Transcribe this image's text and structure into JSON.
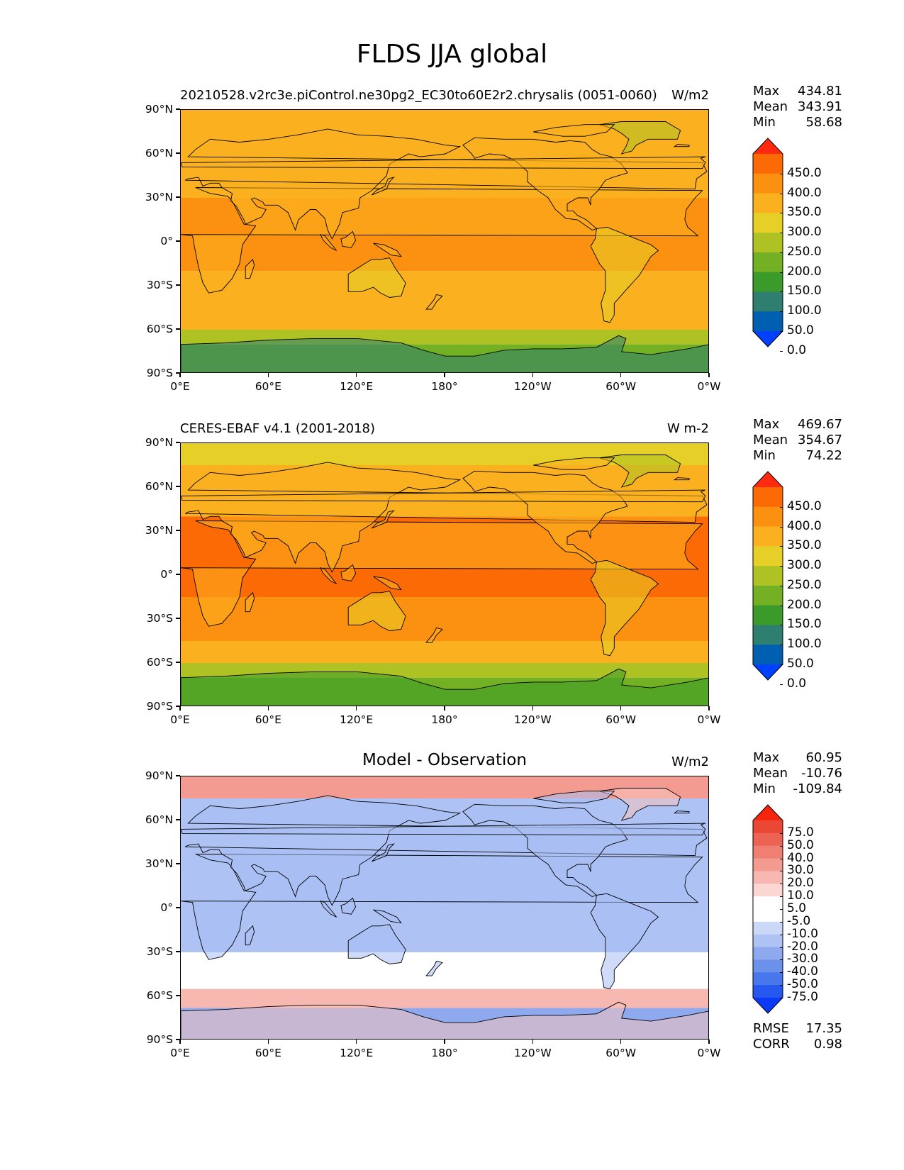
{
  "figure_title": "FLDS JJA global",
  "colors": {
    "ref_levels": [
      "#0040ff",
      "#005fb0",
      "#2e7f6f",
      "#3a9a2a",
      "#73b023",
      "#aec224",
      "#e6cf27",
      "#fbb11f",
      "#fc9010",
      "#fc6a05",
      "#ff2a10"
    ],
    "diff_levels": [
      "#0a3af5",
      "#2657ef",
      "#4877ec",
      "#6b91ea",
      "#8ea9ee",
      "#aec2f4",
      "#ccd8f7",
      "#ffffff",
      "#ffffff",
      "#fbd6d3",
      "#f7b8b2",
      "#f39b91",
      "#ef7f73",
      "#ec6253",
      "#ea4735",
      "#f5250e"
    ],
    "land_outline": "#000000"
  },
  "chart_data": [
    {
      "type": "heatmap",
      "name": "model",
      "title_left": "20210528.v2rc3e.piControl.ne30pg2_EC30to60E2r2.chrysalis (0051-0060)",
      "title_right": "W/m2",
      "x_tick_labels": [
        "0°E",
        "60°E",
        "120°E",
        "180°",
        "120°W",
        "60°W",
        "0°W"
      ],
      "y_tick_labels": [
        "90°N",
        "60°N",
        "30°N",
        "0°",
        "30°S",
        "60°S",
        "90°S"
      ],
      "xlim": [
        0,
        360
      ],
      "ylim": [
        -90,
        90
      ],
      "stats": {
        "Max": "434.81",
        "Mean": "343.91",
        "Min": "58.68"
      },
      "colorbar_levels": [
        "450.0",
        "400.0",
        "350.0",
        "300.0",
        "250.0",
        "200.0",
        "150.0",
        "100.0",
        "50.0",
        "0.0"
      ],
      "zonal_band_values": [
        {
          "lat": [
            60,
            90
          ],
          "value": 310
        },
        {
          "lat": [
            30,
            60
          ],
          "value": 330
        },
        {
          "lat": [
            -20,
            30
          ],
          "value": 395
        },
        {
          "lat": [
            -45,
            -20
          ],
          "value": 340
        },
        {
          "lat": [
            -60,
            -45
          ],
          "value": 300
        },
        {
          "lat": [
            -70,
            -60
          ],
          "value": 240
        },
        {
          "lat": [
            -90,
            -70
          ],
          "value": 150
        }
      ]
    },
    {
      "type": "heatmap",
      "name": "observation",
      "title_left": "CERES-EBAF v4.1 (2001-2018)",
      "title_right": "W m-2",
      "x_tick_labels": [
        "0°E",
        "60°E",
        "120°E",
        "180°",
        "120°W",
        "60°W",
        "0°W"
      ],
      "y_tick_labels": [
        "90°N",
        "60°N",
        "30°N",
        "0°",
        "30°S",
        "60°S",
        "90°S"
      ],
      "xlim": [
        0,
        360
      ],
      "ylim": [
        -90,
        90
      ],
      "stats": {
        "Max": "469.67",
        "Mean": "354.67",
        "Min": "74.22"
      },
      "colorbar_levels": [
        "450.0",
        "400.0",
        "350.0",
        "300.0",
        "250.0",
        "200.0",
        "150.0",
        "100.0",
        "50.0",
        "0.0"
      ],
      "zonal_band_values": [
        {
          "lat": [
            75,
            90
          ],
          "value": 290
        },
        {
          "lat": [
            40,
            75
          ],
          "value": 340
        },
        {
          "lat": [
            -15,
            40
          ],
          "value": 410
        },
        {
          "lat": [
            -45,
            -15
          ],
          "value": 350
        },
        {
          "lat": [
            -60,
            -45
          ],
          "value": 300
        },
        {
          "lat": [
            -70,
            -60
          ],
          "value": 240
        },
        {
          "lat": [
            -90,
            -70
          ],
          "value": 160
        }
      ]
    },
    {
      "type": "heatmap",
      "name": "difference",
      "title_center": "Model - Observation",
      "title_right": "W/m2",
      "x_tick_labels": [
        "0°E",
        "60°E",
        "120°E",
        "180°",
        "120°W",
        "60°W",
        "0°W"
      ],
      "y_tick_labels": [
        "90°N",
        "60°N",
        "30°N",
        "0°",
        "30°S",
        "60°S",
        "90°S"
      ],
      "xlim": [
        0,
        360
      ],
      "ylim": [
        -90,
        90
      ],
      "stats": {
        "Max": "60.95",
        "Mean": "-10.76",
        "Min": "-109.84"
      },
      "extra_stats": {
        "RMSE": "17.35",
        "CORR": "0.98"
      },
      "colorbar_levels": [
        "75.0",
        "50.0",
        "40.0",
        "30.0",
        "20.0",
        "10.0",
        "5.0",
        "-5.0",
        "-10.0",
        "-20.0",
        "-30.0",
        "-40.0",
        "-50.0",
        "-75.0"
      ],
      "zonal_band_values": [
        {
          "lat": [
            75,
            90
          ],
          "value": 22
        },
        {
          "lat": [
            50,
            75
          ],
          "value": -15
        },
        {
          "lat": [
            15,
            50
          ],
          "value": -18
        },
        {
          "lat": [
            -30,
            15
          ],
          "value": -12
        },
        {
          "lat": [
            -55,
            -30
          ],
          "value": 2
        },
        {
          "lat": [
            -68,
            -55
          ],
          "value": 12
        },
        {
          "lat": [
            -90,
            -68
          ],
          "value": -25
        }
      ]
    }
  ]
}
